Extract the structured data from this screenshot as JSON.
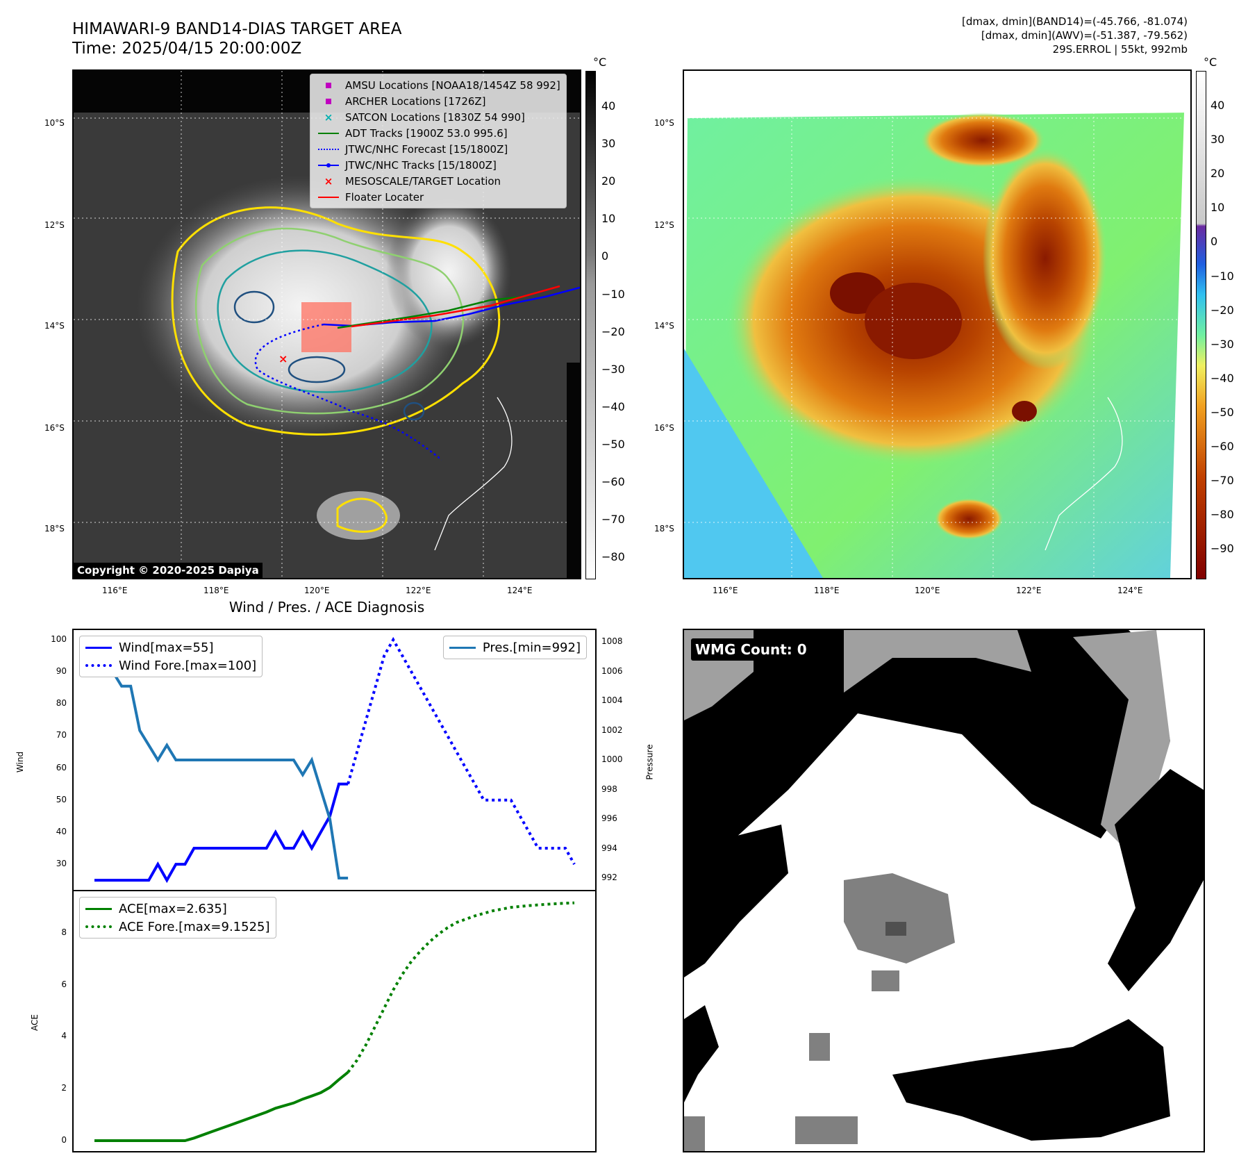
{
  "header": {
    "title_line1": "HIMAWARI-9 BAND14-DIAS TARGET AREA",
    "title_line2": "Time: 2025/04/15 20:00:00Z",
    "right_line1": "[dmax, dmin](BAND14)=(-45.766, -81.074)",
    "right_line2": "[dmax, dmin](AWV)=(-51.387, -79.562)",
    "right_line3": "29S.ERROL | 55kt, 992mb"
  },
  "map": {
    "copyright": "Copyright © 2020-2025 Dapiya",
    "lat_ticks": [
      "10°S",
      "12°S",
      "14°S",
      "16°S",
      "18°S"
    ],
    "lon_ticks": [
      "116°E",
      "118°E",
      "120°E",
      "122°E",
      "124°E"
    ],
    "legend": [
      {
        "label": "AMSU Locations [NOAA18/1454Z 58 992]",
        "color": "#c000c0",
        "symbol": "square"
      },
      {
        "label": "ARCHER Locations [1726Z]",
        "color": "#c000c0",
        "symbol": "square"
      },
      {
        "label": "SATCON Locations [1830Z 54 990]",
        "color": "#00b0b0",
        "symbol": "x"
      },
      {
        "label": "ADT Tracks [1900Z 53.0 995.6]",
        "color": "#008000",
        "symbol": "line"
      },
      {
        "label": "JTWC/NHC Forecast [15/1800Z]",
        "color": "#0000ff",
        "symbol": "dotted"
      },
      {
        "label": "JTWC/NHC Tracks [15/1800Z]",
        "color": "#0000ff",
        "symbol": "line-dot"
      },
      {
        "label": "MESOSCALE/TARGET Location",
        "color": "#ff0000",
        "symbol": "x"
      },
      {
        "label": "Floater Locater",
        "color": "#ff0000",
        "symbol": "line"
      }
    ]
  },
  "colorbars": {
    "unit": "°C",
    "gray_ticks": [
      "40",
      "30",
      "20",
      "10",
      "0",
      "−10",
      "−20",
      "−30",
      "−40",
      "−50",
      "−60",
      "−70",
      "−80"
    ],
    "color_ticks": [
      "40",
      "30",
      "20",
      "10",
      "0",
      "−10",
      "−20",
      "−30",
      "−40",
      "−50",
      "−60",
      "−70",
      "−80",
      "−90"
    ]
  },
  "wmg": {
    "label": "WMG Count: 0"
  },
  "chart_data": [
    {
      "type": "line",
      "title": "Wind / Pres. / ACE Diagnosis",
      "ylabel": "Wind",
      "y2label": "Pressure",
      "ylim": [
        22,
        103
      ],
      "y2lim": [
        991.2,
        1008.8
      ],
      "yticks": [
        "100",
        "90",
        "80",
        "70",
        "60",
        "50",
        "40",
        "30"
      ],
      "y2ticks": [
        "1008",
        "1006",
        "1004",
        "1002",
        "1000",
        "998",
        "996",
        "994",
        "992"
      ],
      "series": [
        {
          "name": "Wind[max=55]",
          "color": "#0000ff",
          "style": "solid",
          "axis": "left",
          "values": [
            [
              0,
              25
            ],
            [
              1,
              25
            ],
            [
              2,
              25
            ],
            [
              3,
              25
            ],
            [
              4,
              25
            ],
            [
              5,
              25
            ],
            [
              6,
              25
            ],
            [
              7,
              30
            ],
            [
              8,
              25
            ],
            [
              9,
              30
            ],
            [
              10,
              30
            ],
            [
              11,
              35
            ],
            [
              12,
              35
            ],
            [
              13,
              35
            ],
            [
              14,
              35
            ],
            [
              15,
              35
            ],
            [
              16,
              35
            ],
            [
              17,
              35
            ],
            [
              18,
              35
            ],
            [
              19,
              35
            ],
            [
              20,
              40
            ],
            [
              21,
              35
            ],
            [
              22,
              35
            ],
            [
              23,
              40
            ],
            [
              24,
              35
            ],
            [
              25,
              40
            ],
            [
              26,
              45
            ],
            [
              27,
              55
            ],
            [
              28,
              55
            ]
          ]
        },
        {
          "name": "Wind Fore.[max=100]",
          "color": "#0000ff",
          "style": "dotted",
          "axis": "left",
          "values": [
            [
              28,
              55
            ],
            [
              29,
              65
            ],
            [
              30,
              75
            ],
            [
              31,
              85
            ],
            [
              32,
              95
            ],
            [
              33,
              100
            ],
            [
              34,
              95
            ],
            [
              35,
              90
            ],
            [
              36,
              85
            ],
            [
              37,
              80
            ],
            [
              38,
              75
            ],
            [
              39,
              70
            ],
            [
              40,
              65
            ],
            [
              41,
              60
            ],
            [
              42,
              55
            ],
            [
              43,
              50
            ],
            [
              44,
              50
            ],
            [
              45,
              50
            ],
            [
              46,
              50
            ],
            [
              47,
              45
            ],
            [
              48,
              40
            ],
            [
              49,
              35
            ],
            [
              50,
              35
            ],
            [
              51,
              35
            ],
            [
              52,
              35
            ],
            [
              53,
              30
            ]
          ]
        },
        {
          "name": "Pres.[min=992]",
          "color": "#1f77b4",
          "style": "solid",
          "axis": "right",
          "values": [
            [
              0,
              1008
            ],
            [
              1,
              1006
            ],
            [
              2,
              1006
            ],
            [
              3,
              1005
            ],
            [
              4,
              1005
            ],
            [
              5,
              1002
            ],
            [
              6,
              1001
            ],
            [
              7,
              1000
            ],
            [
              8,
              1001
            ],
            [
              9,
              1000
            ],
            [
              10,
              1000
            ],
            [
              11,
              1000
            ],
            [
              12,
              1000
            ],
            [
              13,
              1000
            ],
            [
              14,
              1000
            ],
            [
              15,
              1000
            ],
            [
              16,
              1000
            ],
            [
              17,
              1000
            ],
            [
              18,
              1000
            ],
            [
              19,
              1000
            ],
            [
              20,
              1000
            ],
            [
              21,
              1000
            ],
            [
              22,
              1000
            ],
            [
              23,
              999
            ],
            [
              24,
              1000
            ],
            [
              25,
              998
            ],
            [
              26,
              996
            ],
            [
              27,
              992
            ],
            [
              28,
              992
            ]
          ]
        }
      ]
    },
    {
      "type": "line",
      "ylabel": "ACE",
      "ylim": [
        -0.4,
        9.6
      ],
      "yticks": [
        "8",
        "6",
        "4",
        "2",
        "0"
      ],
      "series": [
        {
          "name": "ACE[max=2.635]",
          "color": "#008000",
          "style": "solid",
          "values": [
            [
              0,
              0
            ],
            [
              5,
              0
            ],
            [
              10,
              0
            ],
            [
              11,
              0.1
            ],
            [
              13,
              0.35
            ],
            [
              15,
              0.6
            ],
            [
              17,
              0.85
            ],
            [
              19,
              1.1
            ],
            [
              20,
              1.25
            ],
            [
              22,
              1.45
            ],
            [
              23,
              1.6
            ],
            [
              24,
              1.72
            ],
            [
              25,
              1.85
            ],
            [
              26,
              2.05
            ],
            [
              27,
              2.35
            ],
            [
              28,
              2.635
            ]
          ]
        },
        {
          "name": "ACE Fore.[max=9.1525]",
          "color": "#008000",
          "style": "dotted",
          "values": [
            [
              28,
              2.635
            ],
            [
              29,
              3.1
            ],
            [
              30,
              3.7
            ],
            [
              31,
              4.4
            ],
            [
              32,
              5.1
            ],
            [
              33,
              5.8
            ],
            [
              34,
              6.4
            ],
            [
              35,
              6.9
            ],
            [
              36,
              7.3
            ],
            [
              37,
              7.65
            ],
            [
              38,
              7.95
            ],
            [
              39,
              8.2
            ],
            [
              40,
              8.4
            ],
            [
              42,
              8.65
            ],
            [
              44,
              8.85
            ],
            [
              46,
              8.98
            ],
            [
              48,
              9.05
            ],
            [
              50,
              9.1
            ],
            [
              52,
              9.14
            ],
            [
              53,
              9.1525
            ]
          ]
        }
      ]
    }
  ]
}
